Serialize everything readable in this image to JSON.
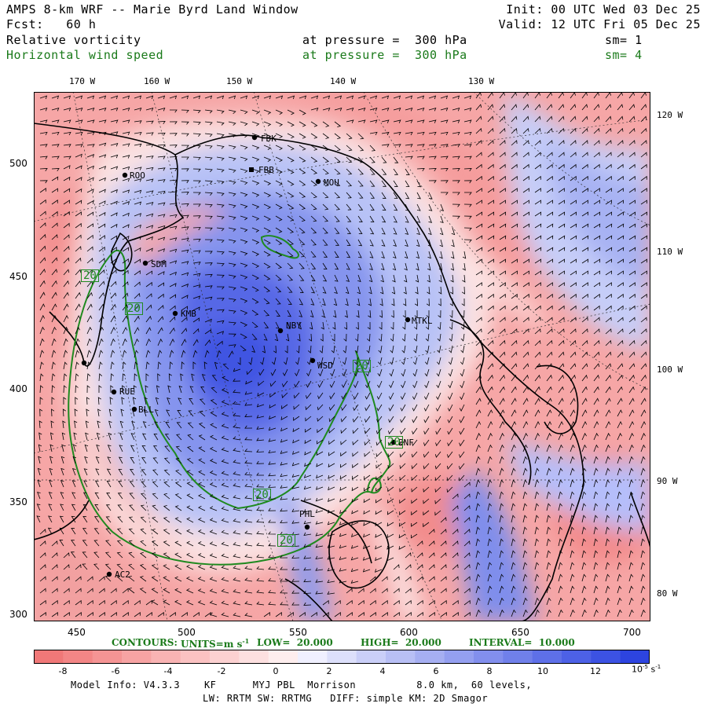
{
  "header": {
    "line1_left": "AMPS 8-km WRF -- Marie Byrd Land Window",
    "line1_right": "Init: 00 UTC Wed 03 Dec 25",
    "line2_left": "Fcst:   60 h",
    "line2_right": "Valid: 12 UTC Fri 05 Dec 25",
    "field1": {
      "name": "Relative vorticity",
      "level": "at pressure =  300 hPa",
      "sm": "sm= 1"
    },
    "field2": {
      "name": "Horizontal wind speed",
      "level": "at pressure =  300 hPa",
      "sm": "sm= 4"
    }
  },
  "top_longitudes": [
    "170 W",
    "160 W",
    "150 W",
    "140 W",
    "130 W"
  ],
  "right_longitudes": [
    "120 W",
    "110 W",
    "100 W",
    "90 W",
    "80 W"
  ],
  "y_axis_ticks": [
    "500",
    "450",
    "400",
    "350",
    "300"
  ],
  "x_axis_ticks": [
    "450",
    "500",
    "550",
    "600",
    "650",
    "700"
  ],
  "stations": [
    "FDK",
    "FBB",
    "MOU",
    "ROO",
    "SDM",
    "KMB",
    "NBY",
    "WSD",
    "MTKL",
    "BNF",
    "RUE",
    "BLL",
    "PHL",
    "AC2"
  ],
  "contour_labels": [
    "20",
    "20",
    "20",
    "20",
    "20",
    "20"
  ],
  "contour_legend": {
    "contours": "CONTOURS:",
    "units": "UNITS=m s",
    "units_sup": "-1",
    "low": "LOW=  20.000",
    "high": "HIGH=  20.000",
    "interval": "INTERVAL=  10.000"
  },
  "colorbar": {
    "labels": [
      "-8",
      "-6",
      "-4",
      "-2",
      "0",
      "2",
      "4",
      "6",
      "8",
      "10",
      "12"
    ],
    "unit": "10",
    "unit_exp": "-5",
    "unit_tail": "s",
    "unit_tail_exp": "-1",
    "negative_colors": [
      "#f07878",
      "#f38686",
      "#f59494",
      "#f7a3a3",
      "#f9b3b3",
      "#fbc2c2",
      "#fcd1d1",
      "#fde0e0",
      "#feeeee"
    ],
    "positive_colors": [
      "#f0f0ff",
      "#dde0fb",
      "#cacff8",
      "#b8bff5",
      "#a6aff2",
      "#949ff0",
      "#828fed",
      "#7080ea",
      "#5e70e8",
      "#4d61e6",
      "#3c52e3",
      "#2d44e0"
    ]
  },
  "footer": {
    "line1": "Model Info: V4.3.3    KF      MYJ PBL  Morrison          8.0 km,  60 levels,",
    "line2": "LW: RRTM SW: RRTMG   DIFF: simple KM: 2D Smagor"
  }
}
